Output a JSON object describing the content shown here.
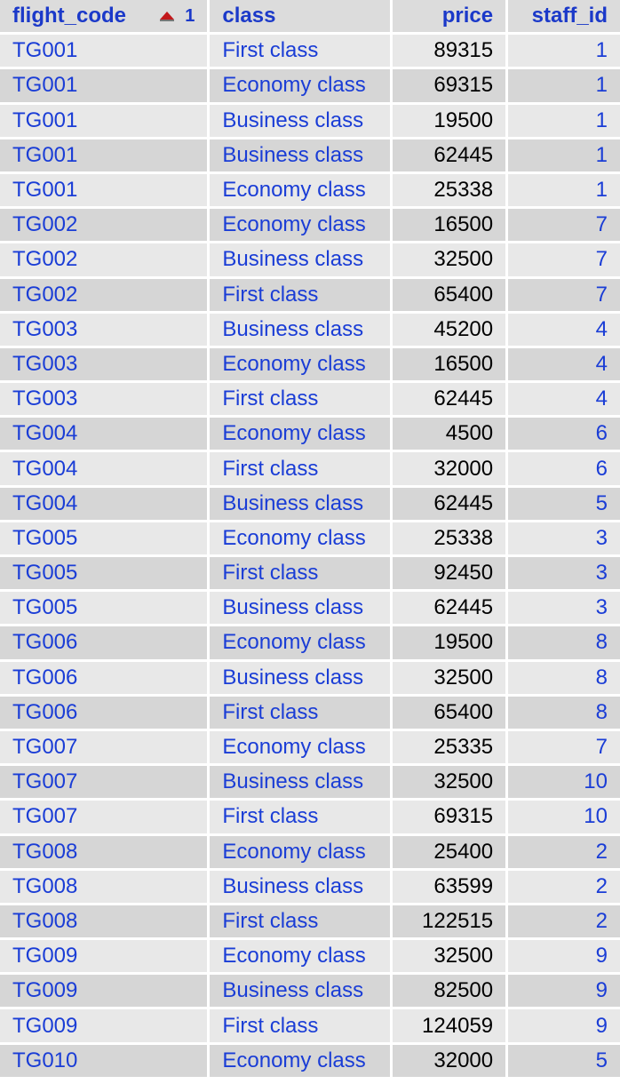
{
  "columns": {
    "flight_code": "flight_code",
    "class": "class",
    "price": "price",
    "staff_id": "staff_id"
  },
  "sort": {
    "column": "flight_code",
    "order": "1",
    "icon": "sort-ascending-icon",
    "icon_color": "#c2181b"
  },
  "colors": {
    "link": "#1a3dd6",
    "row_odd": "#e8e8e8",
    "row_even": "#d6d6d6",
    "header_bg": "#dcdcdc"
  },
  "rows": [
    {
      "flight_code": "TG001",
      "class": "First class",
      "price": "89315",
      "staff_id": "1"
    },
    {
      "flight_code": "TG001",
      "class": "Economy class",
      "price": "69315",
      "staff_id": "1"
    },
    {
      "flight_code": "TG001",
      "class": "Business class",
      "price": "19500",
      "staff_id": "1"
    },
    {
      "flight_code": "TG001",
      "class": "Business class",
      "price": "62445",
      "staff_id": "1"
    },
    {
      "flight_code": "TG001",
      "class": "Economy class",
      "price": "25338",
      "staff_id": "1"
    },
    {
      "flight_code": "TG002",
      "class": "Economy class",
      "price": "16500",
      "staff_id": "7"
    },
    {
      "flight_code": "TG002",
      "class": "Business class",
      "price": "32500",
      "staff_id": "7"
    },
    {
      "flight_code": "TG002",
      "class": "First class",
      "price": "65400",
      "staff_id": "7"
    },
    {
      "flight_code": "TG003",
      "class": "Business class",
      "price": "45200",
      "staff_id": "4"
    },
    {
      "flight_code": "TG003",
      "class": "Economy class",
      "price": "16500",
      "staff_id": "4"
    },
    {
      "flight_code": "TG003",
      "class": "First class",
      "price": "62445",
      "staff_id": "4"
    },
    {
      "flight_code": "TG004",
      "class": "Economy class",
      "price": "4500",
      "staff_id": "6"
    },
    {
      "flight_code": "TG004",
      "class": "First class",
      "price": "32000",
      "staff_id": "6"
    },
    {
      "flight_code": "TG004",
      "class": "Business class",
      "price": "62445",
      "staff_id": "5"
    },
    {
      "flight_code": "TG005",
      "class": "Economy class",
      "price": "25338",
      "staff_id": "3"
    },
    {
      "flight_code": "TG005",
      "class": "First class",
      "price": "92450",
      "staff_id": "3"
    },
    {
      "flight_code": "TG005",
      "class": "Business class",
      "price": "62445",
      "staff_id": "3"
    },
    {
      "flight_code": "TG006",
      "class": "Economy class",
      "price": "19500",
      "staff_id": "8"
    },
    {
      "flight_code": "TG006",
      "class": "Business class",
      "price": "32500",
      "staff_id": "8"
    },
    {
      "flight_code": "TG006",
      "class": "First class",
      "price": "65400",
      "staff_id": "8"
    },
    {
      "flight_code": "TG007",
      "class": "Economy class",
      "price": "25335",
      "staff_id": "7"
    },
    {
      "flight_code": "TG007",
      "class": "Business class",
      "price": "32500",
      "staff_id": "10"
    },
    {
      "flight_code": "TG007",
      "class": "First class",
      "price": "69315",
      "staff_id": "10"
    },
    {
      "flight_code": "TG008",
      "class": "Economy class",
      "price": "25400",
      "staff_id": "2"
    },
    {
      "flight_code": "TG008",
      "class": "Business class",
      "price": "63599",
      "staff_id": "2"
    },
    {
      "flight_code": "TG008",
      "class": "First class",
      "price": "122515",
      "staff_id": "2"
    },
    {
      "flight_code": "TG009",
      "class": "Economy class",
      "price": "32500",
      "staff_id": "9"
    },
    {
      "flight_code": "TG009",
      "class": "Business class",
      "price": "82500",
      "staff_id": "9"
    },
    {
      "flight_code": "TG009",
      "class": "First class",
      "price": "124059",
      "staff_id": "9"
    },
    {
      "flight_code": "TG010",
      "class": "Economy class",
      "price": "32000",
      "staff_id": "5"
    }
  ]
}
